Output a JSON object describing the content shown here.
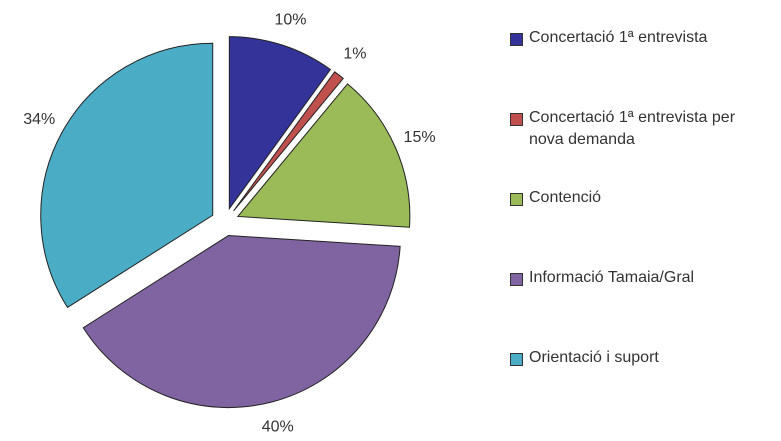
{
  "chart_data": {
    "type": "pie",
    "categories": [
      "Concertació 1ª entrevista",
      "Concertació 1ª entrevista per nova demanda",
      "Contenció",
      "Informació Tamaia/Gral",
      "Orientació i suport"
    ],
    "values": [
      10,
      1,
      15,
      40,
      34
    ],
    "value_labels": [
      "10%",
      "1%",
      "15%",
      "40%",
      "34%"
    ],
    "colors": [
      "#333399",
      "#c0504d",
      "#9bbb59",
      "#8064a2",
      "#4bacc6"
    ],
    "legend": "right"
  }
}
